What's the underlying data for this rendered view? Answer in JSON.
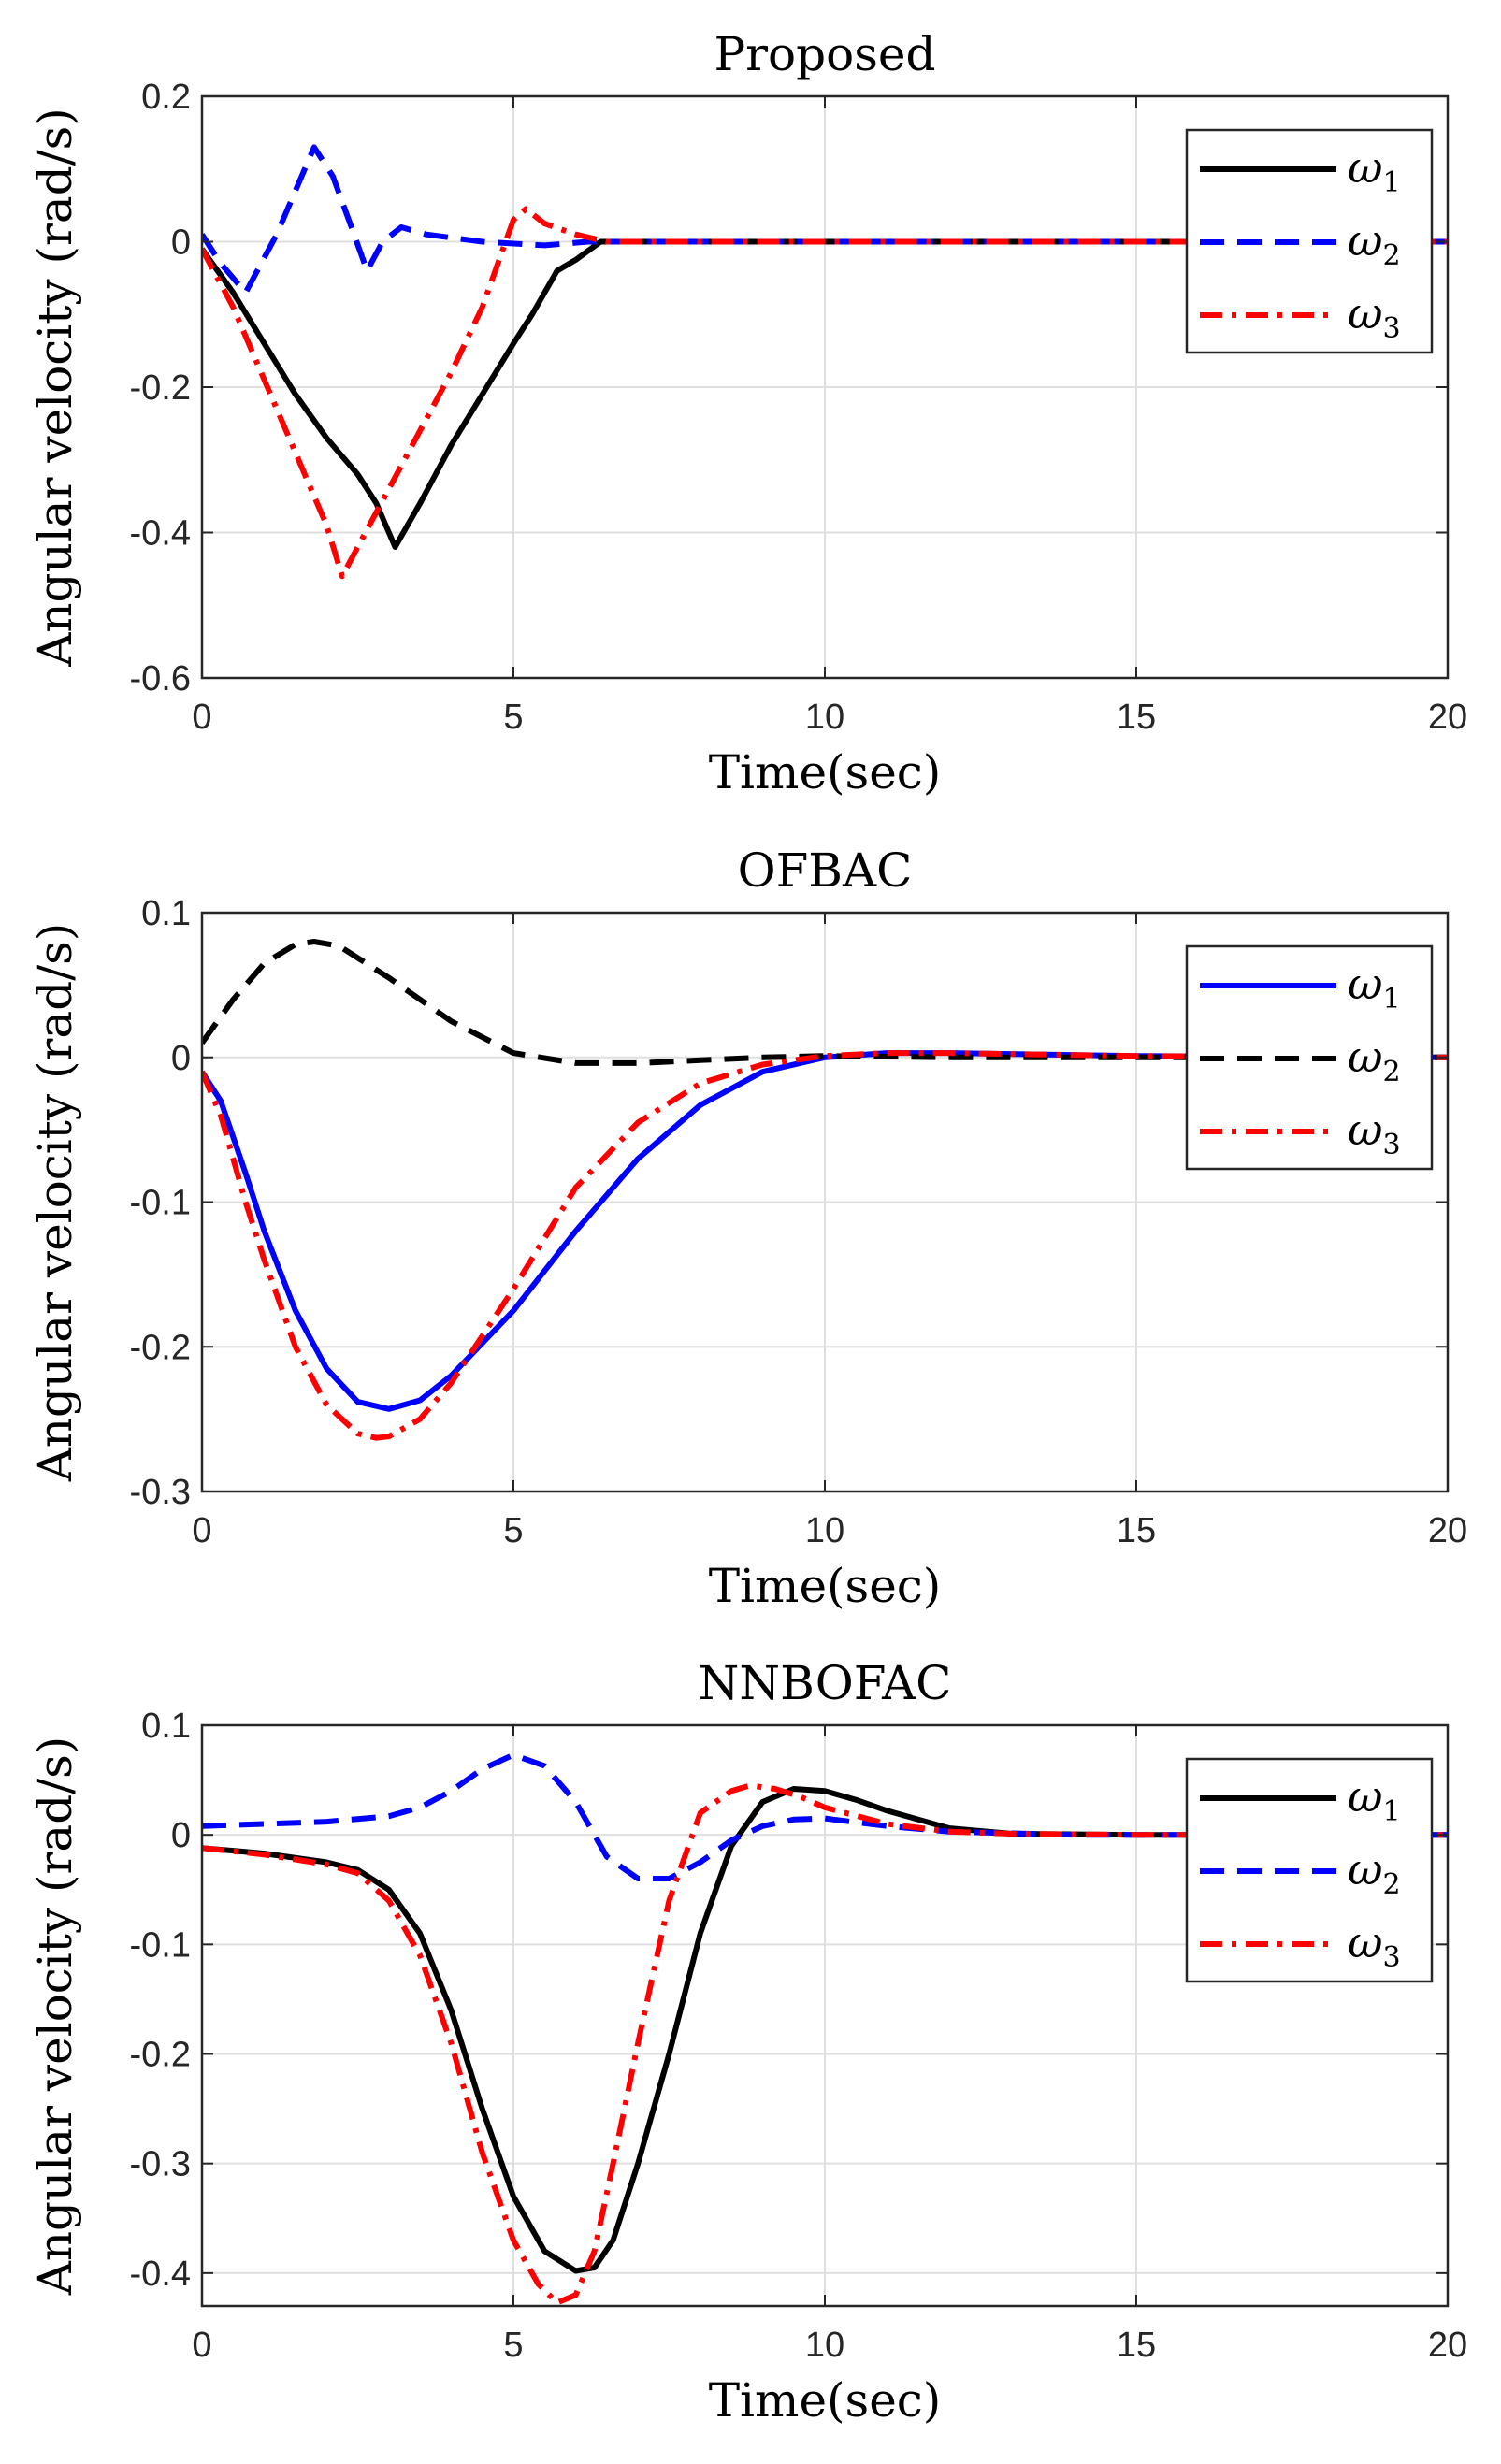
{
  "chart_data": [
    {
      "type": "line",
      "title": "Proposed",
      "xlabel": "Time(sec)",
      "ylabel": "Angular velocity (rad/s)",
      "xlim": [
        0,
        20
      ],
      "ylim": [
        -0.6,
        0.2
      ],
      "xticks": [
        0,
        5,
        10,
        15,
        20
      ],
      "xtick_labels": [
        "0",
        "5",
        "10",
        "15",
        "20"
      ],
      "yticks": [
        -0.6,
        -0.4,
        -0.2,
        0,
        0.2
      ],
      "ytick_labels": [
        "-0.6",
        "-0.4",
        "-0.2",
        "0",
        "0.2"
      ],
      "grid": true,
      "legend_position": "top-right",
      "series": [
        {
          "name": "ω1",
          "symbol": "ω",
          "sub": "1",
          "color": "#000000",
          "style": "solid",
          "x": [
            0,
            0.5,
            1.0,
            1.5,
            2.0,
            2.5,
            2.8,
            3.1,
            3.5,
            4.0,
            4.5,
            5.0,
            5.3,
            5.7,
            6.0,
            6.4,
            7,
            20
          ],
          "y": [
            -0.01,
            -0.07,
            -0.14,
            -0.21,
            -0.27,
            -0.32,
            -0.36,
            -0.42,
            -0.36,
            -0.28,
            -0.21,
            -0.14,
            -0.1,
            -0.04,
            -0.025,
            0.0,
            0.0,
            0.0
          ]
        },
        {
          "name": "ω2",
          "symbol": "ω",
          "sub": "2",
          "color": "#0000ff",
          "style": "dash",
          "x": [
            0,
            0.3,
            0.7,
            1.2,
            1.8,
            2.1,
            2.4,
            2.65,
            2.9,
            3.2,
            3.6,
            4.5,
            5.5,
            6.2,
            8,
            20
          ],
          "y": [
            0.01,
            -0.03,
            -0.07,
            0.01,
            0.13,
            0.09,
            0.02,
            -0.04,
            0.0,
            0.02,
            0.01,
            0.0,
            -0.005,
            0.0,
            0.0,
            0.0
          ]
        },
        {
          "name": "ω3",
          "symbol": "ω",
          "sub": "3",
          "color": "#ff0000",
          "style": "dashdot",
          "x": [
            0,
            0.5,
            1.0,
            1.5,
            2.0,
            2.25,
            2.5,
            3.0,
            3.5,
            4.0,
            4.5,
            5.0,
            5.2,
            5.5,
            6.0,
            6.5,
            20
          ],
          "y": [
            -0.01,
            -0.09,
            -0.19,
            -0.29,
            -0.39,
            -0.46,
            -0.42,
            -0.34,
            -0.26,
            -0.18,
            -0.09,
            0.03,
            0.045,
            0.025,
            0.01,
            0.0,
            0.0
          ]
        }
      ]
    },
    {
      "type": "line",
      "title": "OFBAC",
      "xlabel": "Time(sec)",
      "ylabel": "Angular velocity (rad/s)",
      "xlim": [
        0,
        20
      ],
      "ylim": [
        -0.3,
        0.1
      ],
      "xticks": [
        0,
        5,
        10,
        15,
        20
      ],
      "xtick_labels": [
        "0",
        "5",
        "10",
        "15",
        "20"
      ],
      "yticks": [
        -0.3,
        -0.2,
        -0.1,
        0,
        0.1
      ],
      "ytick_labels": [
        "-0.3",
        "-0.2",
        "-0.1",
        "0",
        "0.1"
      ],
      "grid": true,
      "legend_position": "top-right",
      "series": [
        {
          "name": "ω1",
          "symbol": "ω",
          "sub": "1",
          "color": "#0000ff",
          "style": "solid",
          "x": [
            0,
            0.3,
            0.7,
            1.0,
            1.5,
            2.0,
            2.5,
            3.0,
            3.5,
            4.0,
            5.0,
            6.0,
            7.0,
            8.0,
            9.0,
            10.0,
            11,
            12,
            15,
            20
          ],
          "y": [
            -0.01,
            -0.03,
            -0.08,
            -0.12,
            -0.175,
            -0.215,
            -0.238,
            -0.243,
            -0.237,
            -0.22,
            -0.175,
            -0.12,
            -0.07,
            -0.033,
            -0.01,
            0.0,
            0.003,
            0.003,
            0.001,
            0.0
          ]
        },
        {
          "name": "ω2",
          "symbol": "ω",
          "sub": "2",
          "color": "#000000",
          "style": "dash",
          "x": [
            0,
            0.5,
            1.0,
            1.5,
            1.8,
            2.2,
            3.0,
            4.0,
            5.0,
            6.0,
            7.0,
            8.0,
            9.0,
            10.0,
            12,
            20
          ],
          "y": [
            0.01,
            0.04,
            0.065,
            0.078,
            0.08,
            0.077,
            0.055,
            0.025,
            0.003,
            -0.004,
            -0.004,
            -0.002,
            0.0,
            0.001,
            0.0,
            0.0
          ]
        },
        {
          "name": "ω3",
          "symbol": "ω",
          "sub": "3",
          "color": "#ff0000",
          "style": "dashdot",
          "x": [
            0,
            0.3,
            0.7,
            1.0,
            1.5,
            2.0,
            2.5,
            2.8,
            3.0,
            3.5,
            4.0,
            5.0,
            6.0,
            7.0,
            8.0,
            9.0,
            10.0,
            11,
            12,
            15,
            20
          ],
          "y": [
            -0.01,
            -0.04,
            -0.1,
            -0.14,
            -0.2,
            -0.24,
            -0.26,
            -0.263,
            -0.262,
            -0.25,
            -0.225,
            -0.16,
            -0.09,
            -0.045,
            -0.018,
            -0.005,
            0.001,
            0.003,
            0.003,
            0.001,
            0.0
          ]
        }
      ]
    },
    {
      "type": "line",
      "title": "NNBOFAC",
      "xlabel": "Time(sec)",
      "ylabel": "Angular velocity (rad/s)",
      "xlim": [
        0,
        20
      ],
      "ylim": [
        -0.43,
        0.1
      ],
      "xticks": [
        0,
        5,
        10,
        15,
        20
      ],
      "xtick_labels": [
        "0",
        "5",
        "10",
        "15",
        "20"
      ],
      "yticks": [
        -0.4,
        -0.3,
        -0.2,
        -0.1,
        0,
        0.1
      ],
      "ytick_labels": [
        "-0.4",
        "-0.3",
        "-0.2",
        "-0.1",
        "0",
        "0.1"
      ],
      "grid": true,
      "legend_position": "top-right",
      "series": [
        {
          "name": "ω1",
          "symbol": "ω",
          "sub": "1",
          "color": "#000000",
          "style": "solid",
          "x": [
            0,
            1,
            2,
            2.5,
            3.0,
            3.5,
            4.0,
            4.5,
            5.0,
            5.5,
            6.0,
            6.3,
            6.6,
            7.0,
            7.5,
            8.0,
            8.5,
            9.0,
            9.5,
            10.0,
            10.5,
            11,
            12,
            13,
            15,
            20
          ],
          "y": [
            -0.012,
            -0.017,
            -0.025,
            -0.032,
            -0.05,
            -0.09,
            -0.16,
            -0.25,
            -0.33,
            -0.38,
            -0.398,
            -0.395,
            -0.37,
            -0.3,
            -0.2,
            -0.09,
            -0.01,
            0.03,
            0.042,
            0.04,
            0.032,
            0.022,
            0.006,
            0.001,
            0.0,
            0.0
          ]
        },
        {
          "name": "ω2",
          "symbol": "ω",
          "sub": "2",
          "color": "#0000ff",
          "style": "dash",
          "x": [
            0,
            1,
            2,
            3,
            3.5,
            4.0,
            4.5,
            5.0,
            5.5,
            6.0,
            6.5,
            7.0,
            7.5,
            8.0,
            8.5,
            9.0,
            9.5,
            10,
            11,
            12,
            14,
            20
          ],
          "y": [
            0.008,
            0.01,
            0.012,
            0.017,
            0.025,
            0.04,
            0.06,
            0.073,
            0.063,
            0.03,
            -0.02,
            -0.04,
            -0.04,
            -0.025,
            -0.005,
            0.008,
            0.014,
            0.015,
            0.008,
            0.003,
            0.0,
            0.0
          ]
        },
        {
          "name": "ω3",
          "symbol": "ω",
          "sub": "3",
          "color": "#ff0000",
          "style": "dashdot",
          "x": [
            0,
            1,
            2,
            2.5,
            3.0,
            3.5,
            4.0,
            4.5,
            5.0,
            5.4,
            5.7,
            6.0,
            6.3,
            6.6,
            7.0,
            7.5,
            8.0,
            8.5,
            8.8,
            9.2,
            9.6,
            10,
            11,
            12,
            13,
            15,
            20
          ],
          "y": [
            -0.012,
            -0.018,
            -0.027,
            -0.035,
            -0.06,
            -0.11,
            -0.19,
            -0.29,
            -0.37,
            -0.41,
            -0.427,
            -0.42,
            -0.38,
            -0.3,
            -0.19,
            -0.06,
            0.02,
            0.04,
            0.045,
            0.042,
            0.035,
            0.025,
            0.01,
            0.003,
            0.001,
            0.0,
            0.0
          ]
        }
      ]
    }
  ]
}
